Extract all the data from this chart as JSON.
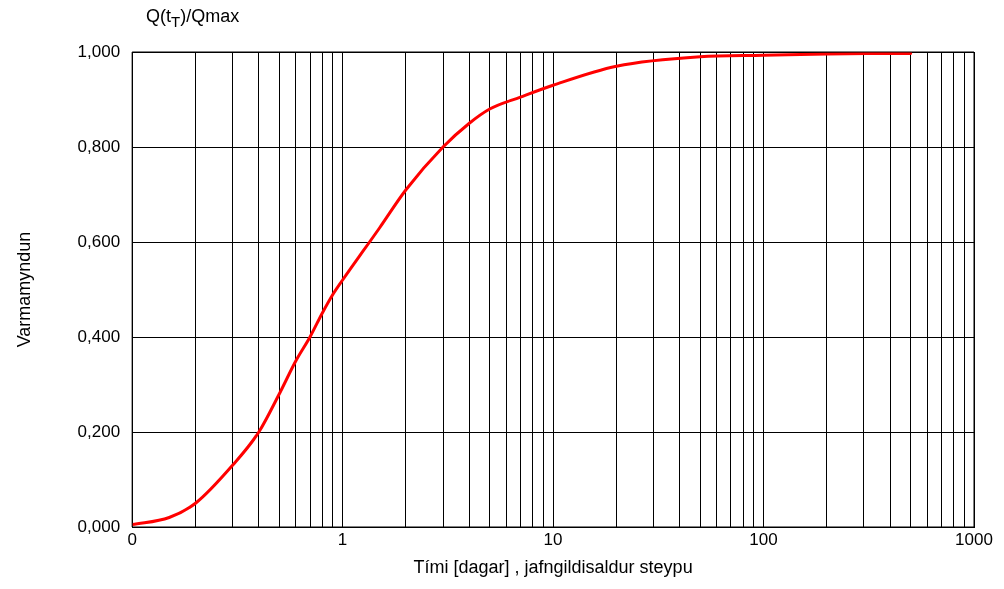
{
  "chart_data": {
    "type": "line",
    "xlabel": "Tími [dagar] , jafngildisaldur steypu",
    "ylabel": "Varmamyndun",
    "annotations": [
      "Q(t$_{T}$)/Qmax"
    ],
    "x": [
      0.1,
      0.15,
      0.2,
      0.3,
      0.4,
      0.5,
      0.6,
      0.7,
      0.8,
      0.9,
      1,
      1.5,
      2,
      3,
      4,
      5,
      7,
      10,
      20,
      50,
      100,
      200,
      500
    ],
    "series": [
      {
        "color": "#ff0000",
        "values": [
          0.005,
          0.02,
          0.05,
          0.13,
          0.2,
          0.28,
          0.35,
          0.4,
          0.45,
          0.49,
          0.52,
          0.63,
          0.71,
          0.8,
          0.85,
          0.88,
          0.905,
          0.93,
          0.97,
          0.99,
          0.993,
          0.996,
          0.997
        ]
      }
    ],
    "log": "x",
    "xlim": [
      0.1,
      1000
    ],
    "ylim": [
      0,
      1
    ],
    "xticks": [
      {
        "value": 0.1,
        "label": "0"
      },
      {
        "value": 0.2,
        "label": null
      },
      {
        "value": 0.3,
        "label": null
      },
      {
        "value": 0.4,
        "label": null
      },
      {
        "value": 0.5,
        "label": null
      },
      {
        "value": 0.6,
        "label": null
      },
      {
        "value": 0.7,
        "label": null
      },
      {
        "value": 0.8,
        "label": null
      },
      {
        "value": 0.9,
        "label": null
      },
      1,
      {
        "value": 2,
        "label": null
      },
      {
        "value": 3,
        "label": null
      },
      {
        "value": 4,
        "label": null
      },
      {
        "value": 5,
        "label": null
      },
      {
        "value": 6,
        "label": null
      },
      {
        "value": 7,
        "label": null
      },
      {
        "value": 8,
        "label": null
      },
      {
        "value": 9,
        "label": null
      },
      10,
      {
        "value": 20,
        "label": null
      },
      {
        "value": 30,
        "label": null
      },
      {
        "value": 40,
        "label": null
      },
      {
        "value": 50,
        "label": null
      },
      {
        "value": 60,
        "label": null
      },
      {
        "value": 70,
        "label": null
      },
      {
        "value": 80,
        "label": null
      },
      {
        "value": 90,
        "label": null
      },
      100,
      {
        "value": 200,
        "label": null
      },
      {
        "value": 300,
        "label": null
      },
      {
        "value": 400,
        "label": null
      },
      {
        "value": 500,
        "label": null
      },
      {
        "value": 600,
        "label": null
      },
      {
        "value": 700,
        "label": null
      },
      {
        "value": 800,
        "label": null
      },
      {
        "value": 900,
        "label": null
      },
      1000
    ],
    "yticks": [
      {
        "value": 0,
        "label": "0,000"
      },
      {
        "value": 0.2,
        "label": "0,200"
      },
      {
        "value": 0.4,
        "label": "0,400"
      },
      {
        "value": 0.6,
        "label": "0,600"
      },
      {
        "value": 0.8,
        "label": "0,800"
      },
      {
        "value": 1,
        "label": "1,000"
      }
    ],
    "grid": true,
    "marker": "none",
    "line_style": "solid"
  }
}
